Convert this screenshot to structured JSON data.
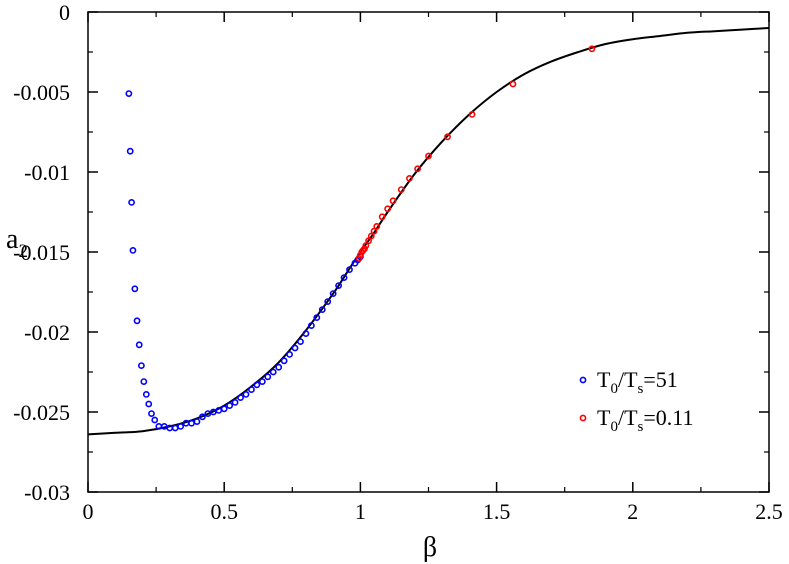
{
  "chart_data": {
    "type": "scatter",
    "xlabel": "β",
    "ylabel": "a",
    "ylabel_sub": "2",
    "xlim": [
      0,
      2.5
    ],
    "ylim": [
      -0.03,
      0
    ],
    "x_ticks": [
      "0",
      "0.5",
      "1",
      "1.5",
      "2",
      "2.5"
    ],
    "y_ticks": [
      "-0.03",
      "-0.025",
      "-0.02",
      "-0.015",
      "-0.01",
      "-0.005",
      "0"
    ],
    "legend_position": "bottom-right",
    "colors": {
      "series_1": "#0000ff",
      "series_2": "#ff0000",
      "curve": "#000000"
    },
    "series": [
      {
        "name_parts": [
          "T",
          "0",
          "/T",
          "s",
          "=51"
        ],
        "color": "#0000ff",
        "x": [
          0.15,
          0.155,
          0.16,
          0.165,
          0.172,
          0.18,
          0.188,
          0.196,
          0.205,
          0.214,
          0.223,
          0.233,
          0.245,
          0.26,
          0.28,
          0.3,
          0.32,
          0.34,
          0.36,
          0.38,
          0.4,
          0.42,
          0.44,
          0.46,
          0.48,
          0.5,
          0.52,
          0.54,
          0.56,
          0.58,
          0.6,
          0.62,
          0.64,
          0.66,
          0.68,
          0.7,
          0.72,
          0.74,
          0.76,
          0.78,
          0.8,
          0.82,
          0.84,
          0.86,
          0.88,
          0.9,
          0.92,
          0.94,
          0.96,
          0.98,
          0.99,
          1.0
        ],
        "y": [
          -0.0051,
          -0.0087,
          -0.0119,
          -0.0149,
          -0.0173,
          -0.0193,
          -0.0208,
          -0.0221,
          -0.0231,
          -0.0239,
          -0.0245,
          -0.0251,
          -0.0255,
          -0.0259,
          -0.0259,
          -0.026,
          -0.026,
          -0.0259,
          -0.0257,
          -0.0257,
          -0.0256,
          -0.0253,
          -0.0251,
          -0.025,
          -0.0249,
          -0.0248,
          -0.0246,
          -0.0244,
          -0.0241,
          -0.0239,
          -0.0236,
          -0.0233,
          -0.0231,
          -0.0228,
          -0.0225,
          -0.0222,
          -0.0218,
          -0.0214,
          -0.021,
          -0.0206,
          -0.0201,
          -0.0196,
          -0.0191,
          -0.0186,
          -0.0181,
          -0.0176,
          -0.0171,
          -0.0166,
          -0.0161,
          -0.0157,
          -0.0155,
          -0.0153
        ]
      },
      {
        "name_parts": [
          "T",
          "0",
          "/T",
          "s",
          "=0.11"
        ],
        "color": "#ff0000",
        "x": [
          0.995,
          1.0,
          1.005,
          1.01,
          1.015,
          1.02,
          1.03,
          1.04,
          1.05,
          1.06,
          1.08,
          1.1,
          1.12,
          1.15,
          1.18,
          1.21,
          1.25,
          1.32,
          1.41,
          1.56,
          1.85
        ],
        "y": [
          -0.0154,
          -0.0152,
          -0.015,
          -0.0149,
          -0.0148,
          -0.0146,
          -0.0143,
          -0.014,
          -0.0137,
          -0.0134,
          -0.0128,
          -0.0123,
          -0.0118,
          -0.0111,
          -0.0104,
          -0.0098,
          -0.009,
          -0.0078,
          -0.0064,
          -0.0045,
          -0.0023
        ]
      }
    ],
    "curve": {
      "x": [
        0,
        0.1,
        0.2,
        0.3,
        0.4,
        0.5,
        0.6,
        0.7,
        0.8,
        0.9,
        0.95,
        1.0,
        1.05,
        1.1,
        1.2,
        1.3,
        1.4,
        1.5,
        1.6,
        1.7,
        1.8,
        1.9,
        2.0,
        2.1,
        2.2,
        2.3,
        2.4,
        2.5
      ],
      "y": [
        -0.0264,
        -0.0263,
        -0.0262,
        -0.0259,
        -0.0254,
        -0.0246,
        -0.0234,
        -0.0219,
        -0.0199,
        -0.0176,
        -0.0163,
        -0.015,
        -0.0138,
        -0.0125,
        -0.0101,
        -0.0081,
        -0.0064,
        -0.005,
        -0.0039,
        -0.0031,
        -0.0025,
        -0.002,
        -0.0017,
        -0.0015,
        -0.0013,
        -0.0012,
        -0.0011,
        -0.001
      ]
    }
  }
}
